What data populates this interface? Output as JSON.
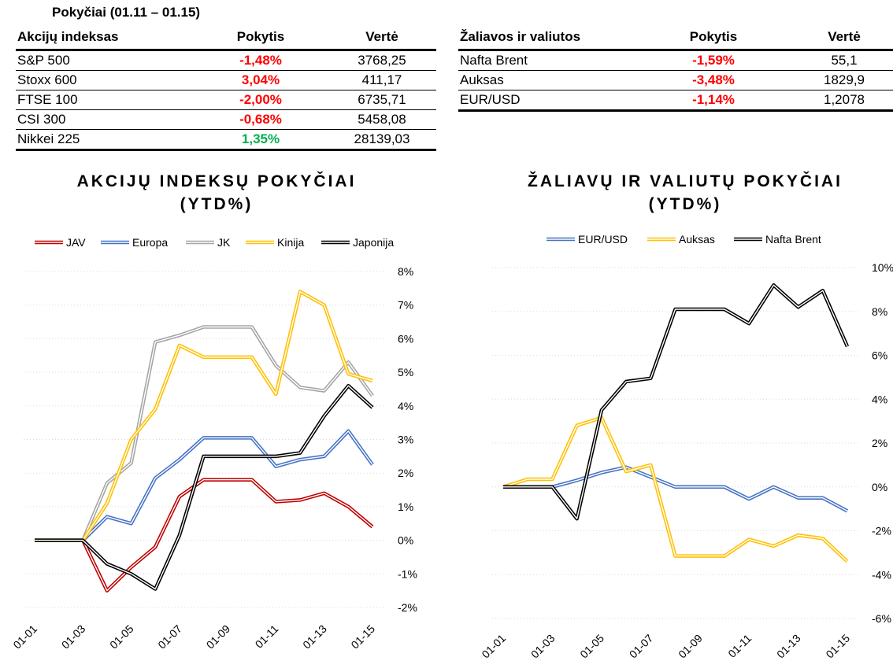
{
  "tables": {
    "title": "Pokyčiai (01.11 – 01.15)",
    "indices": {
      "headers": [
        "Akcijų indeksas",
        "Pokytis",
        "Vertė"
      ],
      "rows": [
        {
          "name": "S&P 500",
          "change": "-1,48%",
          "value": "3768,25",
          "color": "#ff0000"
        },
        {
          "name": "Stoxx 600",
          "change": "3,04%",
          "value": "411,17",
          "color": "#ff0000"
        },
        {
          "name": "FTSE 100",
          "change": "-2,00%",
          "value": "6735,71",
          "color": "#ff0000"
        },
        {
          "name": "CSI 300",
          "change": "-0,68%",
          "value": "5458,08",
          "color": "#ff0000"
        },
        {
          "name": "Nikkei 225",
          "change": "1,35%",
          "value": "28139,03",
          "color": "#00b050"
        }
      ]
    },
    "commodities": {
      "headers": [
        "Žaliavos ir valiutos",
        "Pokytis",
        "Vertė"
      ],
      "rows": [
        {
          "name": "Nafta Brent",
          "change": "-1,59%",
          "value": "55,1",
          "color": "#ff0000"
        },
        {
          "name": "Auksas",
          "change": "-3,48%",
          "value": "1829,9",
          "color": "#ff0000"
        },
        {
          "name": "EUR/USD",
          "change": "-1,14%",
          "value": "1,2078",
          "color": "#ff0000"
        }
      ]
    }
  },
  "chart_data": [
    {
      "type": "line",
      "title": "AKCIJŲ INDEKSŲ POKYČIAI",
      "subtitle": "(YTD%)",
      "x": [
        "01-01",
        "01-02",
        "01-03",
        "01-04",
        "01-05",
        "01-06",
        "01-07",
        "01-08",
        "01-09",
        "01-10",
        "01-11",
        "01-12",
        "01-13",
        "01-14",
        "01-15"
      ],
      "x_tick_labels": [
        "01-01",
        "01-03",
        "01-05",
        "01-07",
        "01-09",
        "01-11",
        "01-13",
        "01-15"
      ],
      "y_tick_labels": [
        "8%",
        "7%",
        "6%",
        "5%",
        "4%",
        "3%",
        "2%",
        "1%",
        "0%",
        "-1%",
        "-2%"
      ],
      "ylim": [
        -2,
        8
      ],
      "y_axis_side": "right",
      "grid": true,
      "legend": "top",
      "series": [
        {
          "name": "JAV",
          "color": "#c00000",
          "values": [
            0,
            0,
            0,
            -1.5,
            -0.8,
            -0.2,
            1.3,
            1.8,
            1.8,
            1.8,
            1.15,
            1.2,
            1.4,
            1.0,
            0.4
          ]
        },
        {
          "name": "Europa",
          "color": "#4472c4",
          "values": [
            0,
            0,
            0,
            0.7,
            0.5,
            1.85,
            2.4,
            3.05,
            3.05,
            3.05,
            2.2,
            2.4,
            2.5,
            3.25,
            2.25
          ]
        },
        {
          "name": "JK",
          "color": "#a5a5a5",
          "values": [
            0,
            0,
            0,
            1.7,
            2.3,
            5.9,
            6.1,
            6.35,
            6.35,
            6.35,
            5.2,
            4.55,
            4.45,
            5.3,
            4.3
          ]
        },
        {
          "name": "Kinija",
          "color": "#ffc000",
          "values": [
            0,
            0,
            0,
            1.1,
            3.0,
            3.9,
            5.8,
            5.45,
            5.45,
            5.45,
            4.35,
            7.4,
            7.0,
            4.95,
            4.75
          ]
        },
        {
          "name": "Japonija",
          "color": "#000000",
          "values": [
            0,
            0,
            0,
            -0.7,
            -1.0,
            -1.45,
            0.15,
            2.5,
            2.5,
            2.5,
            2.5,
            2.6,
            3.7,
            4.6,
            3.95
          ]
        }
      ]
    },
    {
      "type": "line",
      "title": "ŽALIAVŲ IR VALIUTŲ POKYČIAI",
      "subtitle": "(YTD%)",
      "x": [
        "01-01",
        "01-02",
        "01-03",
        "01-04",
        "01-05",
        "01-06",
        "01-07",
        "01-08",
        "01-09",
        "01-10",
        "01-11",
        "01-12",
        "01-13",
        "01-14",
        "01-15"
      ],
      "x_tick_labels": [
        "01-01",
        "01-03",
        "01-05",
        "01-07",
        "01-09",
        "01-11",
        "01-13",
        "01-15"
      ],
      "y_tick_labels": [
        "10%",
        "8%",
        "6%",
        "4%",
        "2%",
        "0%",
        "-2%",
        "-4%",
        "-6%"
      ],
      "ylim": [
        -6,
        10
      ],
      "y_axis_side": "right",
      "grid": true,
      "legend": "top",
      "series": [
        {
          "name": "EUR/USD",
          "color": "#4472c4",
          "values": [
            0,
            0,
            0,
            0.3,
            0.65,
            0.9,
            0.45,
            0,
            0,
            0,
            -0.55,
            0,
            -0.5,
            -0.5,
            -1.1
          ]
        },
        {
          "name": "Auksas",
          "color": "#ffc000",
          "values": [
            0,
            0.35,
            0.35,
            2.8,
            3.15,
            0.7,
            1.0,
            -3.15,
            -3.15,
            -3.15,
            -2.4,
            -2.7,
            -2.2,
            -2.35,
            -3.4
          ]
        },
        {
          "name": "Nafta Brent",
          "color": "#000000",
          "values": [
            0,
            0,
            0,
            -1.45,
            3.5,
            4.8,
            4.95,
            8.1,
            8.1,
            8.1,
            7.45,
            9.2,
            8.2,
            8.95,
            6.4
          ]
        }
      ]
    }
  ]
}
